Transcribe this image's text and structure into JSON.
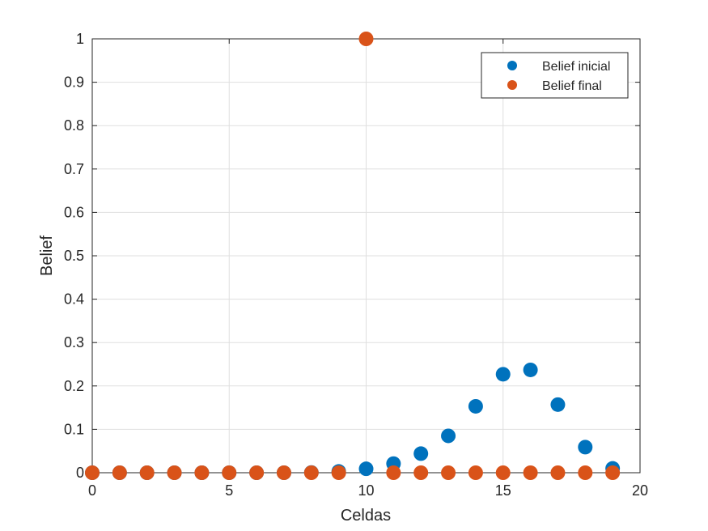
{
  "chart_data": {
    "type": "scatter",
    "title": "",
    "xlabel": "Celdas",
    "ylabel": "Belief",
    "xlim": [
      0,
      20
    ],
    "ylim": [
      0,
      1
    ],
    "xticks": [
      "0",
      "5",
      "10",
      "15",
      "20"
    ],
    "yticks": [
      "0",
      "0.1",
      "0.2",
      "0.3",
      "0.4",
      "0.5",
      "0.6",
      "0.7",
      "0.8",
      "0.9",
      "1"
    ],
    "grid": true,
    "legend_position": "top-right",
    "series": [
      {
        "name": "Belief inicial",
        "color": "#0072BD",
        "x": [
          0,
          1,
          2,
          3,
          4,
          5,
          6,
          7,
          8,
          9,
          10,
          11,
          12,
          13,
          14,
          15,
          16,
          17,
          18,
          19
        ],
        "y": [
          0,
          0,
          0,
          0,
          0,
          0,
          0,
          0,
          0.0005,
          0.003,
          0.009,
          0.021,
          0.044,
          0.085,
          0.153,
          0.227,
          0.237,
          0.157,
          0.059,
          0.01
        ]
      },
      {
        "name": "Belief final",
        "color": "#D95319",
        "x": [
          0,
          1,
          2,
          3,
          4,
          5,
          6,
          7,
          8,
          9,
          10,
          11,
          12,
          13,
          14,
          15,
          16,
          17,
          18,
          19
        ],
        "y": [
          0,
          0,
          0,
          0,
          0,
          0,
          0,
          0,
          0,
          0,
          1,
          0,
          0,
          0,
          0,
          0,
          0,
          0,
          0,
          0
        ]
      }
    ]
  }
}
